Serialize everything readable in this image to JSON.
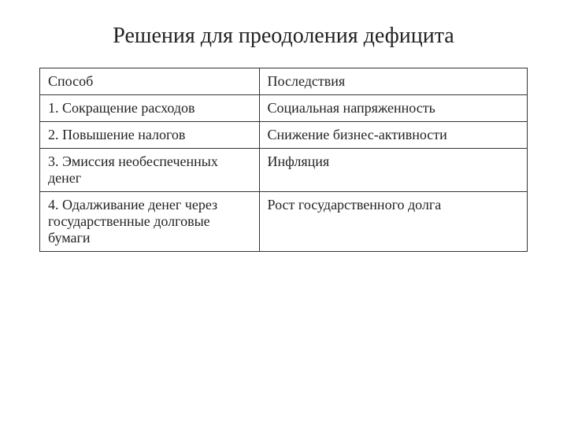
{
  "title": "Решения для преодоления дефицита",
  "table": {
    "columns": [
      "Способ",
      "Последствия"
    ],
    "rows": [
      [
        "1. Сокращение расходов",
        "Социальная напряженность"
      ],
      [
        "2. Повышение налогов",
        "Снижение бизнес-активности"
      ],
      [
        "3. Эмиссия необеспеченных денег",
        "Инфляция"
      ],
      [
        "4. Одалживание денег через государственные долговые бумаги",
        "Рост государственного долга"
      ]
    ],
    "border_color": "#333333",
    "text_color": "#222222",
    "background_color": "#ffffff",
    "header_fontsize": 18,
    "cell_fontsize": 18,
    "title_fontsize": 28,
    "column_widths": [
      "45%",
      "55%"
    ]
  }
}
